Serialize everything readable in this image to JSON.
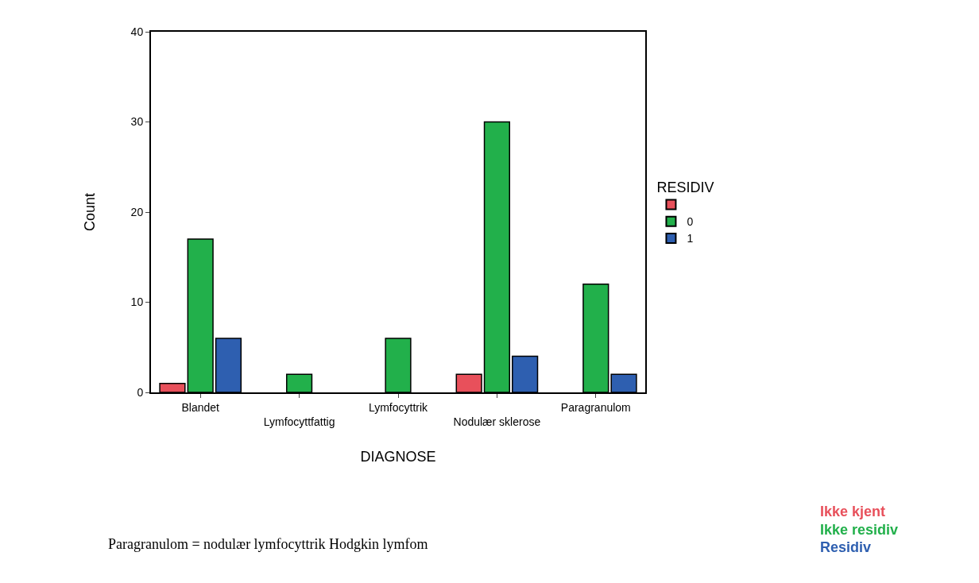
{
  "chart_data": {
    "type": "bar",
    "xlabel": "DIAGNOSE",
    "ylabel": "Count",
    "legend_title": "RESIDIV",
    "categories": [
      "Blandet",
      "Lymfocyttfattig",
      "Lymfocyttrik",
      "Nodulær sklerose",
      "Paragranulom"
    ],
    "series": [
      {
        "color": "#e8505b",
        "values": [
          1,
          null,
          null,
          2,
          null
        ]
      },
      {
        "name": "0",
        "color": "#22b04b",
        "values": [
          17,
          2,
          6,
          30,
          12
        ]
      },
      {
        "name": "1",
        "color": "#2e5fb0",
        "values": [
          6,
          null,
          null,
          4,
          2
        ]
      }
    ],
    "ylim": [
      0,
      40
    ],
    "yticks": [
      0,
      10,
      20,
      30,
      40
    ],
    "legend": "right",
    "annotations": [
      "Paragranulom = nodulær lymfocyttrik Hodgkin lymfom",
      "Ikke kjent",
      "Ikke residiv",
      "Residiv"
    ]
  }
}
